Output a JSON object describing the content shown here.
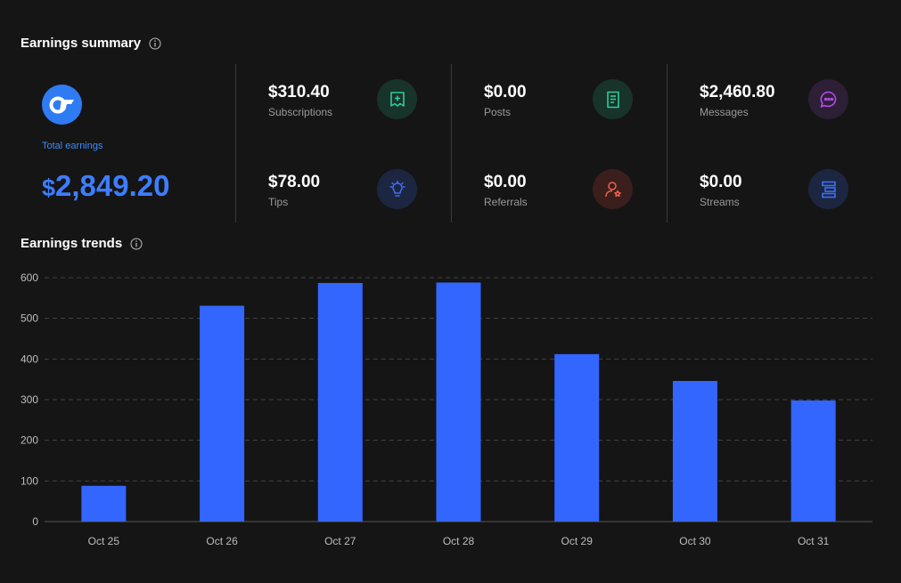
{
  "summary": {
    "title": "Earnings summary",
    "total_label": "Total earnings",
    "total_currency": "$",
    "total_amount": "2,849.20",
    "stats": [
      {
        "value": "$310.40",
        "label": "Subscriptions",
        "icon": "subscription-icon",
        "color": "#2ecc9a",
        "bg": "#17332a"
      },
      {
        "value": "$78.00",
        "label": "Tips",
        "icon": "lightbulb-icon",
        "color": "#3b6ff5",
        "bg": "#1c2640"
      },
      {
        "value": "$0.00",
        "label": "Posts",
        "icon": "document-icon",
        "color": "#2ecc9a",
        "bg": "#17332a"
      },
      {
        "value": "$0.00",
        "label": "Referrals",
        "icon": "referral-user-icon",
        "color": "#f0604d",
        "bg": "#3a1f1c"
      },
      {
        "value": "$2,460.80",
        "label": "Messages",
        "icon": "chat-bubble-icon",
        "color": "#b14de6",
        "bg": "#2d1f36"
      },
      {
        "value": "$0.00",
        "label": "Streams",
        "icon": "streams-icon",
        "color": "#3b6ff5",
        "bg": "#1c2640"
      }
    ]
  },
  "trends": {
    "title": "Earnings trends"
  },
  "chart_data": {
    "type": "bar",
    "categories": [
      "Oct 25",
      "Oct 26",
      "Oct 27",
      "Oct 28",
      "Oct 29",
      "Oct 30",
      "Oct 31"
    ],
    "values": [
      88,
      531,
      587,
      588,
      412,
      346,
      298
    ],
    "yticks": [
      0,
      100,
      200,
      300,
      400,
      500,
      600
    ],
    "ylim": [
      0,
      600
    ],
    "grid": "dashed-horizontal",
    "bar_color": "#3366ff"
  }
}
